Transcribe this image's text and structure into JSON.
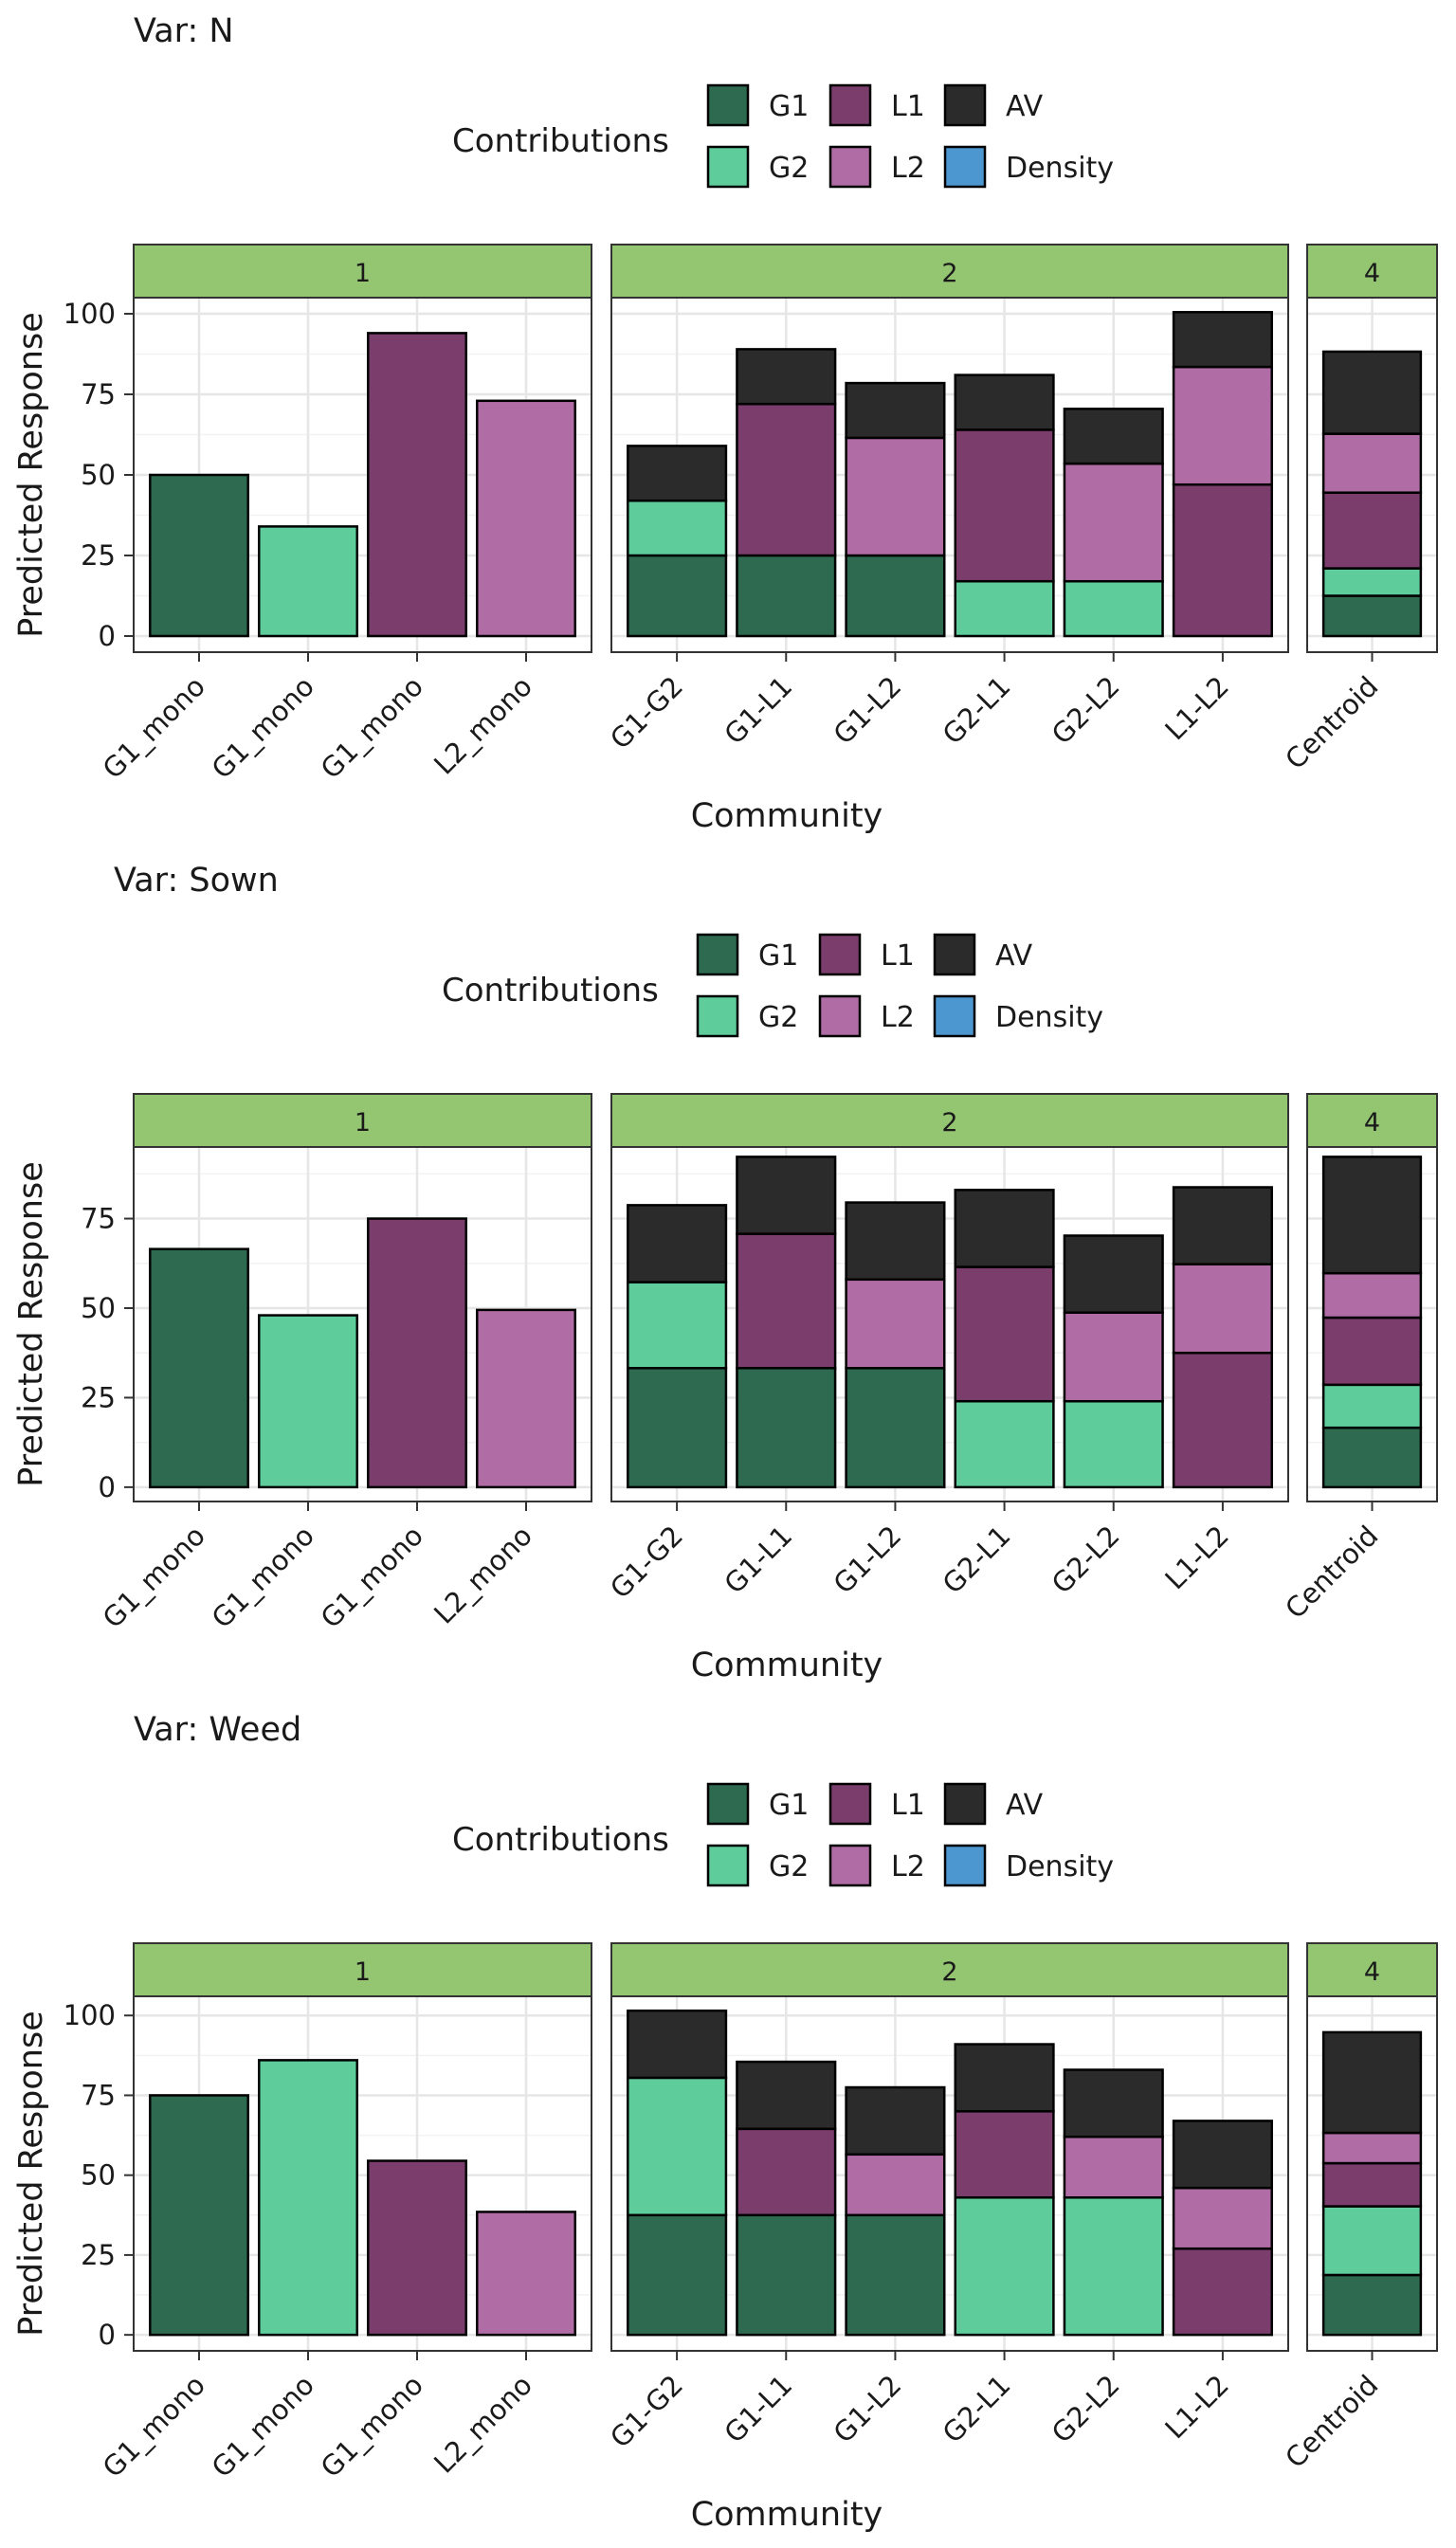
{
  "colors": {
    "G1": "#2d6a50",
    "G2": "#5fcc9c",
    "L1": "#7a3d6c",
    "L2": "#b06ca4",
    "AV": "#2b2b2b",
    "Density": "#4d97d1",
    "strip": "#94c672"
  },
  "legend": {
    "title": "Contributions",
    "keys": [
      "G1",
      "G2",
      "L1",
      "L2",
      "AV",
      "Density"
    ]
  },
  "chart_data": [
    {
      "type": "bar",
      "title": "Var: N",
      "xlabel": "Community",
      "ylabel": "Predicted Response",
      "ylim": [
        -5,
        105
      ],
      "yticks": [
        0,
        25,
        50,
        75,
        100
      ],
      "facets": [
        {
          "label": "1",
          "categories": [
            "G1_mono",
            "G1_mono",
            "G1_mono",
            "L2_mono"
          ],
          "stacks": [
            {
              "G1": 50
            },
            {
              "G2": 34
            },
            {
              "L1": 94
            },
            {
              "L2": 73
            }
          ]
        },
        {
          "label": "2",
          "categories": [
            "G1-G2",
            "G1-L1",
            "G1-L2",
            "G2-L1",
            "G2-L2",
            "L1-L2"
          ],
          "stacks": [
            {
              "G1": 25,
              "G2": 17,
              "AV": 17
            },
            {
              "G1": 25,
              "L1": 47,
              "AV": 17
            },
            {
              "G1": 25,
              "L2": 36.5,
              "AV": 17
            },
            {
              "G2": 17,
              "L1": 47,
              "AV": 17
            },
            {
              "G2": 17,
              "L2": 36.5,
              "AV": 17
            },
            {
              "L1": 47,
              "L2": 36.5,
              "AV": 17
            }
          ]
        },
        {
          "label": "4",
          "categories": [
            "Centroid"
          ],
          "stacks": [
            {
              "G1": 12.5,
              "G2": 8.5,
              "L1": 23.5,
              "L2": 18.25,
              "AV": 25.5
            }
          ]
        }
      ]
    },
    {
      "type": "bar",
      "title": "Var: Sown",
      "xlabel": "Community",
      "ylabel": "Predicted Response",
      "ylim": [
        -4,
        95
      ],
      "yticks": [
        0,
        25,
        50,
        75
      ],
      "facets": [
        {
          "label": "1",
          "categories": [
            "G1_mono",
            "G1_mono",
            "G1_mono",
            "L2_mono"
          ],
          "stacks": [
            {
              "G1": 66.5
            },
            {
              "G2": 48
            },
            {
              "L1": 75
            },
            {
              "L2": 49.5
            }
          ]
        },
        {
          "label": "2",
          "categories": [
            "G1-G2",
            "G1-L1",
            "G1-L2",
            "G2-L1",
            "G2-L2",
            "L1-L2"
          ],
          "stacks": [
            {
              "G1": 33.25,
              "G2": 24,
              "AV": 21.5
            },
            {
              "G1": 33.25,
              "L1": 37.5,
              "AV": 21.5
            },
            {
              "G1": 33.25,
              "L2": 24.75,
              "AV": 21.5
            },
            {
              "G2": 24,
              "L1": 37.5,
              "AV": 21.5
            },
            {
              "G2": 24,
              "L2": 24.75,
              "AV": 21.5
            },
            {
              "L1": 37.5,
              "L2": 24.75,
              "AV": 21.5
            }
          ]
        },
        {
          "label": "4",
          "categories": [
            "Centroid"
          ],
          "stacks": [
            {
              "G1": 16.6,
              "G2": 12,
              "L1": 18.75,
              "L2": 12.4,
              "AV": 32.5
            }
          ]
        }
      ]
    },
    {
      "type": "bar",
      "title": "Var: Weed",
      "xlabel": "Community",
      "ylabel": "Predicted Response",
      "ylim": [
        -5,
        106
      ],
      "yticks": [
        0,
        25,
        50,
        75,
        100
      ],
      "facets": [
        {
          "label": "1",
          "categories": [
            "G1_mono",
            "G1_mono",
            "G1_mono",
            "L2_mono"
          ],
          "stacks": [
            {
              "G1": 75
            },
            {
              "G2": 86
            },
            {
              "L1": 54.5
            },
            {
              "L2": 38.5
            }
          ]
        },
        {
          "label": "2",
          "categories": [
            "G1-G2",
            "G1-L1",
            "G1-L2",
            "G2-L1",
            "G2-L2",
            "L1-L2"
          ],
          "stacks": [
            {
              "G1": 37.5,
              "G2": 43,
              "AV": 21
            },
            {
              "G1": 37.5,
              "L1": 27,
              "AV": 21
            },
            {
              "G1": 37.5,
              "L2": 19,
              "AV": 21
            },
            {
              "G2": 43,
              "L1": 27,
              "AV": 21
            },
            {
              "G2": 43,
              "L2": 19,
              "AV": 21
            },
            {
              "L1": 27,
              "L2": 19,
              "AV": 21
            }
          ]
        },
        {
          "label": "4",
          "categories": [
            "Centroid"
          ],
          "stacks": [
            {
              "G1": 18.75,
              "G2": 21.5,
              "L1": 13.5,
              "L2": 9.5,
              "AV": 31.5
            }
          ]
        }
      ]
    }
  ]
}
